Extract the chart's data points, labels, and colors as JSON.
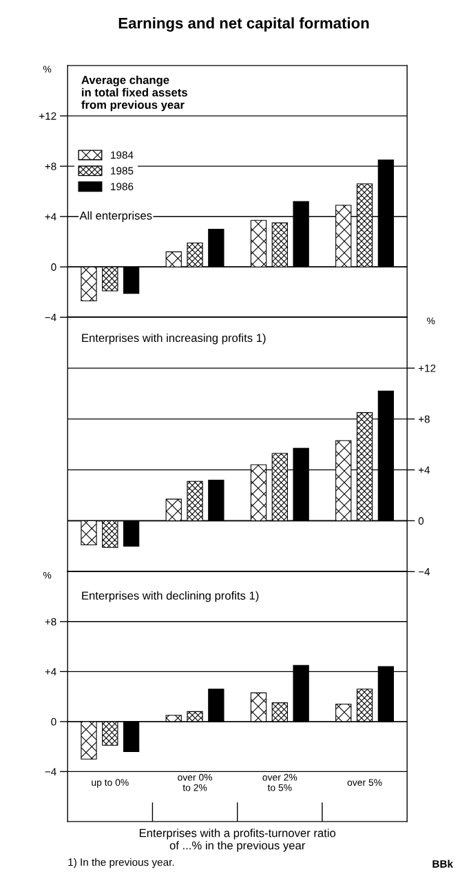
{
  "chart_data": [
    {
      "type": "bar",
      "title": "Earnings and net capital formation",
      "subtitle": "Average change\nin total fixed assets\nfrom previous year",
      "ylabel": "%",
      "categories": [
        null,
        null,
        null,
        null
      ],
      "series": [
        {
          "name": "1984",
          "color": "#000000",
          "values": [
            -2.7,
            1.2,
            3.7,
            4.9
          ]
        },
        {
          "name": "1985",
          "color": "#000000",
          "values": [
            -1.9,
            1.9,
            3.5,
            6.6
          ]
        },
        {
          "name": "1986",
          "color": "#000000",
          "values": [
            -2.1,
            3.0,
            5.2,
            8.5
          ]
        }
      ],
      "ylim": [
        -4,
        16
      ],
      "yticks": [
        {
          "value": -4,
          "label": "−4"
        },
        0,
        {
          "value": 4,
          "label": "+4"
        },
        {
          "value": 8,
          "label": "+8"
        },
        {
          "value": 12,
          "label": "+12"
        }
      ],
      "annotations": [
        "All enterprises"
      ],
      "grid": "y",
      "legend": "top left",
      "tick_labels": "y"
    },
    {
      "type": "bar",
      "ylabel": "%",
      "categories": [
        null,
        null,
        null,
        null
      ],
      "series": [
        {
          "color": "#000000",
          "values": [
            -1.9,
            1.7,
            4.4,
            6.3
          ]
        },
        {
          "color": "#000000",
          "values": [
            -2.1,
            3.1,
            5.3,
            8.5
          ]
        },
        {
          "color": "#000000",
          "values": [
            -2.0,
            3.2,
            5.7,
            10.2
          ]
        }
      ],
      "ylim": [
        -4,
        16
      ],
      "yticks": [
        {
          "value": -4,
          "label": "−4"
        },
        0,
        {
          "value": 4,
          "label": "+4"
        },
        {
          "value": 8,
          "label": "+8"
        },
        {
          "value": 12,
          "label": "+12"
        }
      ],
      "annotations": [
        "Enterprises with increasing profits 1)"
      ],
      "grid": "y",
      "tick_labels": "y"
    },
    {
      "type": "bar",
      "ylabel": "%",
      "xlabel": "Enterprises with a profits-turnover ratio\nof ...% in the previous year",
      "categories": [
        "up to 0%",
        "over 0%\nto 2%",
        "over 2%\nto 5%",
        "over 5%"
      ],
      "series": [
        {
          "color": "#000000",
          "values": [
            -3.0,
            0.5,
            2.3,
            1.4
          ]
        },
        {
          "color": "#000000",
          "values": [
            -1.9,
            0.8,
            1.5,
            2.6
          ]
        },
        {
          "color": "#000000",
          "values": [
            -2.4,
            2.6,
            4.5,
            4.4
          ]
        }
      ],
      "ylim": [
        -8,
        12
      ],
      "yticks": [
        {
          "value": -4,
          "label": "−4"
        },
        0,
        {
          "value": 4,
          "label": "+4"
        },
        {
          "value": 8,
          "label": "+8"
        }
      ],
      "annotations": [
        "Enterprises with declining profits 1)",
        "1) In the previous year.",
        "BBk"
      ],
      "grid": "y"
    }
  ]
}
